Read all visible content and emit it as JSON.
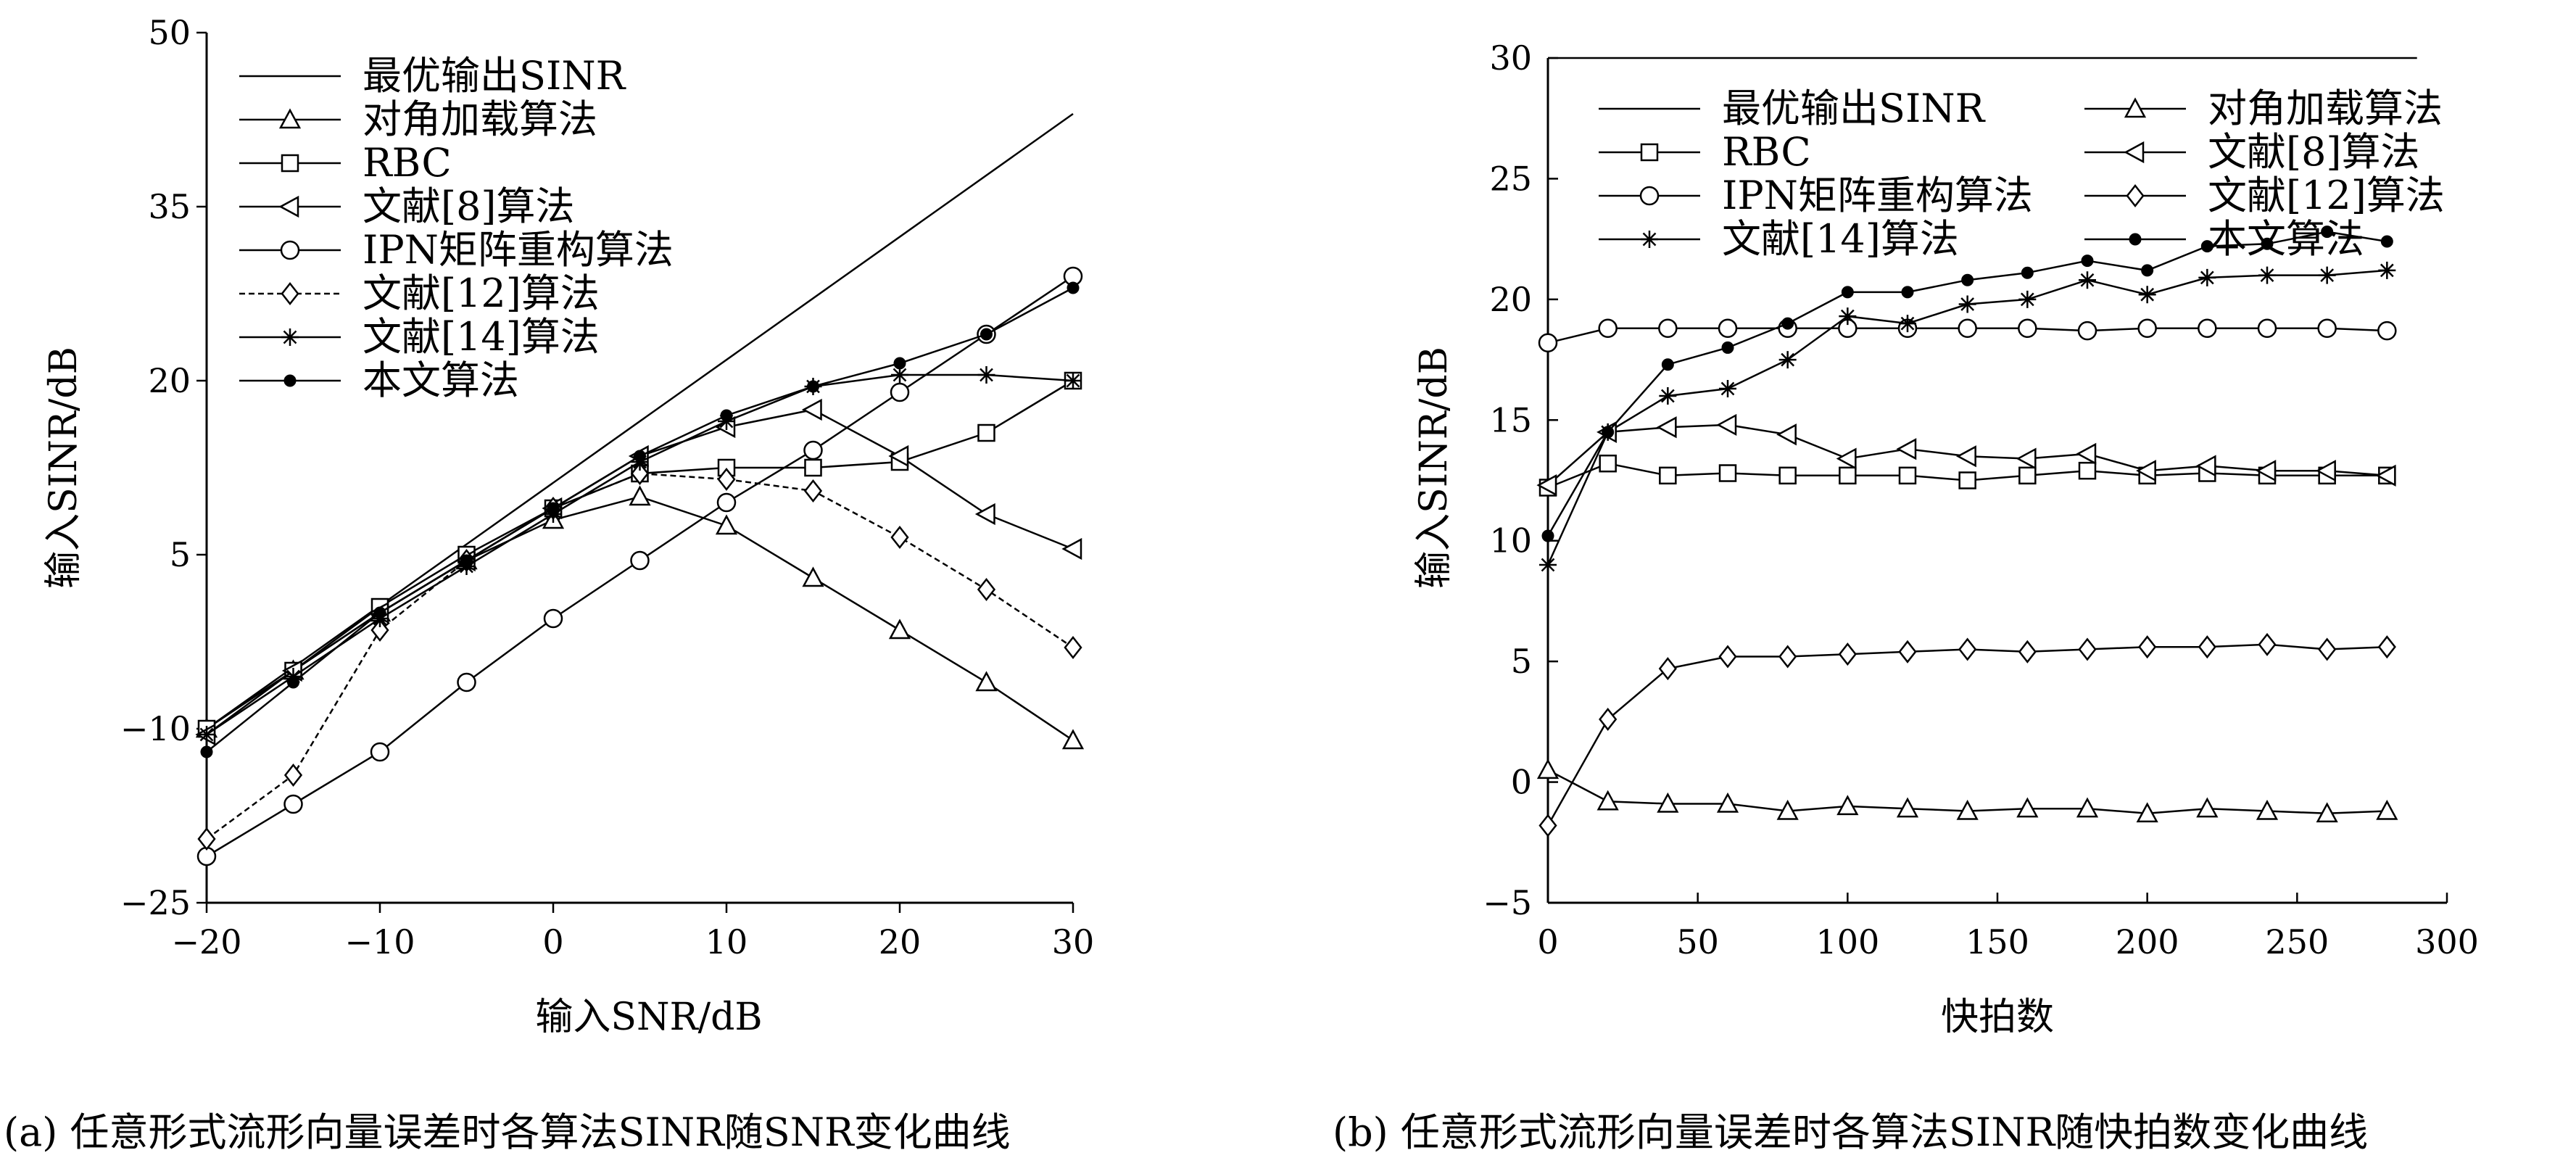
{
  "chart_data": [
    {
      "id": "a",
      "type": "line",
      "xlabel": "输入SNR/dB",
      "ylabel": "输入SINR/dB",
      "xlim": [
        -20,
        30
      ],
      "ylim": [
        -25,
        50
      ],
      "xticks": [
        "−20",
        "−10",
        "0",
        "10",
        "20",
        "30"
      ],
      "yticks": [
        "−25",
        "−10",
        "5",
        "20",
        "35",
        "50"
      ],
      "xtick_values": [
        -20,
        -10,
        0,
        10,
        20,
        30
      ],
      "ytick_values": [
        -25,
        -10,
        5,
        20,
        35,
        50
      ],
      "caption": "(a) 任意形式流形向量误差时各算法SINR随SNR变化曲线",
      "legend_position": "top-left",
      "series": [
        {
          "name": "最优输出SINR",
          "marker": "none",
          "dashed": false,
          "x": [
            -20,
            30
          ],
          "y": [
            -10,
            43
          ]
        },
        {
          "name": "对角加载算法",
          "marker": "triangle",
          "dashed": false,
          "x": [
            -20,
            -15,
            -10,
            -5,
            0,
            5,
            10,
            15,
            20,
            25,
            30
          ],
          "y": [
            -10,
            -5,
            0,
            4.5,
            8,
            10,
            7.5,
            3,
            -1.5,
            -6,
            -11
          ]
        },
        {
          "name": "RBC",
          "marker": "square",
          "dashed": false,
          "x": [
            -20,
            -15,
            -10,
            -5,
            0,
            5,
            10,
            15,
            20,
            25,
            30
          ],
          "y": [
            -10,
            -5,
            0.5,
            5,
            9,
            12,
            12.5,
            12.5,
            13,
            15.5,
            20
          ]
        },
        {
          "name": "文献[8]算法",
          "marker": "triangle-left",
          "dashed": false,
          "x": [
            -20,
            -15,
            -10,
            -5,
            0,
            5,
            10,
            15,
            20,
            25,
            30
          ],
          "y": [
            -10.5,
            -5,
            0,
            4.5,
            9,
            13.5,
            16,
            17.5,
            13.5,
            8.5,
            5.5
          ]
        },
        {
          "name": "IPN矩阵重构算法",
          "marker": "circle",
          "dashed": false,
          "x": [
            -20,
            -15,
            -10,
            -5,
            0,
            5,
            10,
            15,
            20,
            25,
            30
          ],
          "y": [
            -21,
            -16.5,
            -12,
            -6,
            -0.5,
            4.5,
            9.5,
            14,
            19,
            24,
            29
          ]
        },
        {
          "name": "文献[12]算法",
          "marker": "diamond",
          "dashed": true,
          "x": [
            -20,
            -15,
            -10,
            -5,
            0,
            5,
            10,
            15,
            20,
            25,
            30
          ],
          "y": [
            -19.5,
            -14,
            -1.5,
            4.5,
            9,
            12,
            11.5,
            10.5,
            6.5,
            2,
            -3
          ]
        },
        {
          "name": "文献[14]算法",
          "marker": "star",
          "dashed": false,
          "x": [
            -20,
            -15,
            -10,
            -5,
            0,
            5,
            10,
            15,
            20,
            25,
            30
          ],
          "y": [
            -10.5,
            -5.5,
            -0.5,
            4,
            8.5,
            13,
            16.5,
            19.5,
            20.5,
            20.5,
            20
          ]
        },
        {
          "name": "本文算法",
          "marker": "dot",
          "dashed": false,
          "x": [
            -20,
            -15,
            -10,
            -5,
            0,
            5,
            10,
            15,
            20,
            25,
            30
          ],
          "y": [
            -12,
            -6,
            0,
            4.5,
            9,
            13.5,
            17,
            19.5,
            21.5,
            24,
            28
          ]
        }
      ]
    },
    {
      "id": "b",
      "type": "line",
      "xlabel": "快拍数",
      "ylabel": "输入SINR/dB",
      "xlim": [
        0,
        300
      ],
      "ylim": [
        -5,
        30
      ],
      "xticks": [
        "0",
        "50",
        "100",
        "150",
        "200",
        "250",
        "300"
      ],
      "yticks": [
        "−5",
        "0",
        "5",
        "10",
        "15",
        "20",
        "25",
        "30"
      ],
      "xtick_values": [
        0,
        50,
        100,
        150,
        200,
        250,
        300
      ],
      "ytick_values": [
        -5,
        0,
        5,
        10,
        15,
        20,
        25,
        30
      ],
      "caption": "(b) 任意形式流形向量误差时各算法SINR随快拍数变化曲线",
      "legend_position": "top",
      "series": [
        {
          "name": "最优输出SINR",
          "marker": "none",
          "dashed": false,
          "x": [
            0,
            290
          ],
          "y": [
            30,
            30
          ]
        },
        {
          "name": "RBC",
          "marker": "square",
          "dashed": false,
          "x": [
            0,
            20,
            40,
            60,
            80,
            100,
            120,
            140,
            160,
            180,
            200,
            220,
            240,
            260,
            280
          ],
          "y": [
            12.2,
            13.2,
            12.7,
            12.8,
            12.7,
            12.7,
            12.7,
            12.5,
            12.7,
            12.9,
            12.7,
            12.8,
            12.7,
            12.7,
            12.7
          ]
        },
        {
          "name": "IPN矩阵重构算法",
          "marker": "circle",
          "dashed": false,
          "x": [
            0,
            20,
            40,
            60,
            80,
            100,
            120,
            140,
            160,
            180,
            200,
            220,
            240,
            260,
            280
          ],
          "y": [
            18.2,
            18.8,
            18.8,
            18.8,
            18.8,
            18.8,
            18.8,
            18.8,
            18.8,
            18.7,
            18.8,
            18.8,
            18.8,
            18.8,
            18.7
          ]
        },
        {
          "name": "文献[14]算法",
          "marker": "star",
          "dashed": false,
          "x": [
            0,
            20,
            40,
            60,
            80,
            100,
            120,
            140,
            160,
            180,
            200,
            220,
            240,
            260,
            280
          ],
          "y": [
            9,
            14.5,
            16,
            16.3,
            17.5,
            19.3,
            19,
            19.8,
            20,
            20.8,
            20.2,
            20.9,
            21,
            21,
            21.2
          ]
        },
        {
          "name": "对角加载算法",
          "marker": "triangle",
          "dashed": false,
          "x": [
            0,
            20,
            40,
            60,
            80,
            100,
            120,
            140,
            160,
            180,
            200,
            220,
            240,
            260,
            280
          ],
          "y": [
            0.5,
            -0.8,
            -0.9,
            -0.9,
            -1.2,
            -1,
            -1.1,
            -1.2,
            -1.1,
            -1.1,
            -1.3,
            -1.1,
            -1.2,
            -1.3,
            -1.2
          ]
        },
        {
          "name": "文献[8]算法",
          "marker": "triangle-left",
          "dashed": false,
          "x": [
            0,
            20,
            40,
            60,
            80,
            100,
            120,
            140,
            160,
            180,
            200,
            220,
            240,
            260,
            280
          ],
          "y": [
            12.3,
            14.5,
            14.7,
            14.8,
            14.4,
            13.4,
            13.8,
            13.5,
            13.4,
            13.6,
            12.9,
            13.1,
            12.9,
            12.9,
            12.7
          ]
        },
        {
          "name": "文献[12]算法",
          "marker": "diamond",
          "dashed": false,
          "x": [
            0,
            20,
            40,
            60,
            80,
            100,
            120,
            140,
            160,
            180,
            200,
            220,
            240,
            260,
            280
          ],
          "y": [
            -1.8,
            2.6,
            4.7,
            5.2,
            5.2,
            5.3,
            5.4,
            5.5,
            5.4,
            5.5,
            5.6,
            5.6,
            5.7,
            5.5,
            5.6
          ]
        },
        {
          "name": "本文算法",
          "marker": "dot",
          "dashed": false,
          "x": [
            0,
            20,
            40,
            60,
            80,
            100,
            120,
            140,
            160,
            180,
            200,
            220,
            240,
            260,
            280
          ],
          "y": [
            10.2,
            14.5,
            17.3,
            18,
            19,
            20.3,
            20.3,
            20.8,
            21.1,
            21.6,
            21.2,
            22.2,
            22.3,
            22.8,
            22.4
          ]
        }
      ]
    }
  ]
}
